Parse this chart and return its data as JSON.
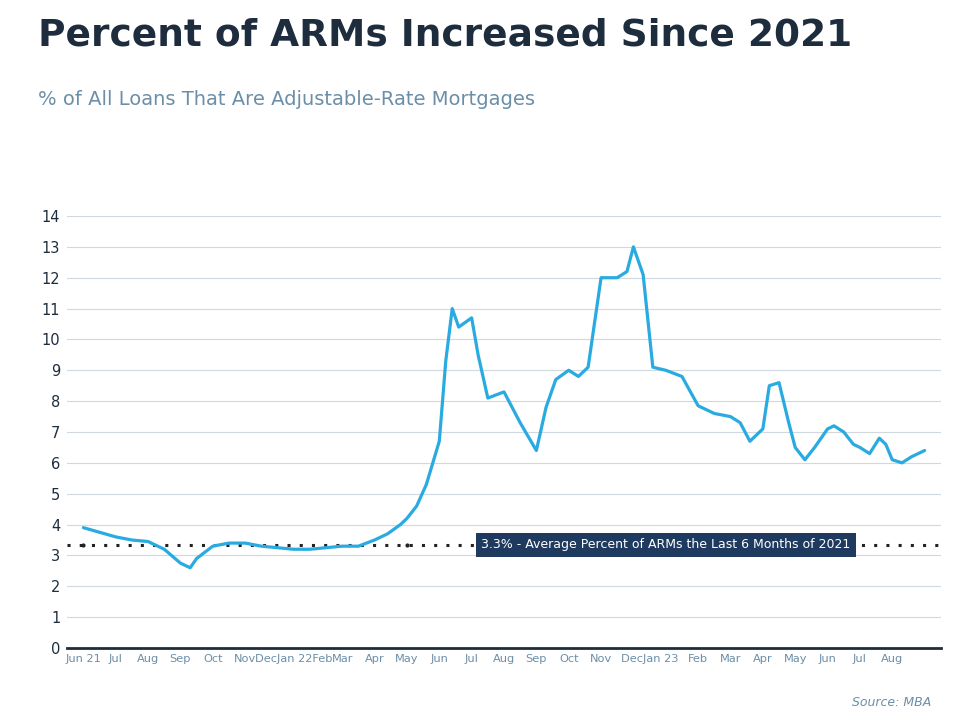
{
  "title": "Percent of ARMs Increased Since 2021",
  "subtitle": "% of All Loans That Are Adjustable-Rate Mortgages",
  "source": "Source: MBA",
  "line_color": "#29ABE2",
  "annotation_bg": "#1e3a5f",
  "annotation_text": "3.3% - Average Percent of ARMs the Last 6 Months of 2021",
  "annotation_text_color": "#ffffff",
  "dotted_line_value": 3.35,
  "dotted_line_color": "#222222",
  "title_color": "#1e2d3d",
  "subtitle_color": "#6b8fa8",
  "source_color": "#6b8fa8",
  "top_bar_color": "#29ABE2",
  "ylim": [
    0,
    14
  ],
  "yticks": [
    0,
    1,
    2,
    3,
    4,
    5,
    6,
    7,
    8,
    9,
    10,
    11,
    12,
    13,
    14
  ],
  "x_labels": [
    "Jun 21",
    "Jul",
    "Aug",
    "Sep",
    "Oct",
    "Nov",
    "DecJan 22Feb",
    "Mar",
    "Apr",
    "May",
    "Jun",
    "Jul",
    "Aug",
    "Sep",
    "Oct",
    "Nov",
    "DecJan 23",
    "Feb",
    "Mar",
    "Apr",
    "May",
    "Jun",
    "Jul",
    "Aug"
  ],
  "background_color": "#ffffff",
  "grid_color": "#d0d8e0"
}
